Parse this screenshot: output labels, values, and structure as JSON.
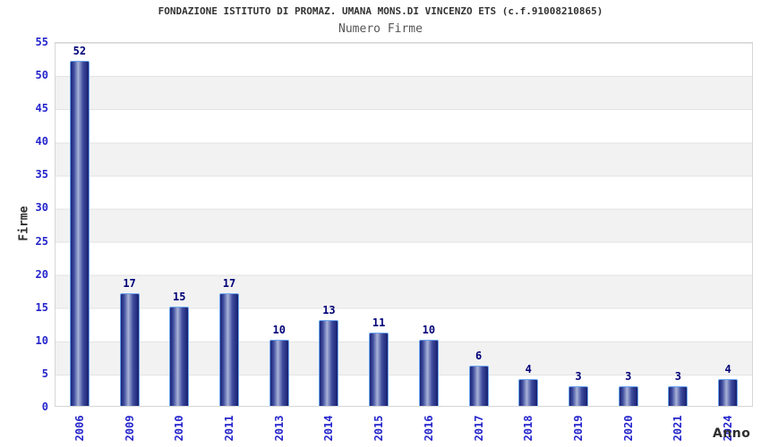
{
  "chart_data": {
    "type": "bar",
    "title": "FONDAZIONE ISTITUTO DI PROMAZ. UMANA MONS.DI VINCENZO ETS (c.f.91008210865)",
    "subtitle": "Numero Firme",
    "xlabel": "Anno",
    "ylabel": "Firme",
    "categories": [
      "2006",
      "2009",
      "2010",
      "2011",
      "2013",
      "2014",
      "2015",
      "2016",
      "2017",
      "2018",
      "2019",
      "2020",
      "2021",
      "2024"
    ],
    "values": [
      52,
      17,
      15,
      17,
      10,
      13,
      11,
      10,
      6,
      4,
      3,
      3,
      3,
      4
    ],
    "ylim": [
      0,
      55
    ],
    "ytick_step": 5,
    "grid": true,
    "legend": "none",
    "band_fill": "#f2f2f2",
    "colors": {
      "bar_dark": "#1b2577",
      "bar_highlight": "#a9b3d8",
      "bar_border": "#6ca6f0",
      "tick_label": "#2424cc",
      "value_label": "#000078",
      "axis_title": "#2e2e2e",
      "title_text": "#333333"
    }
  }
}
